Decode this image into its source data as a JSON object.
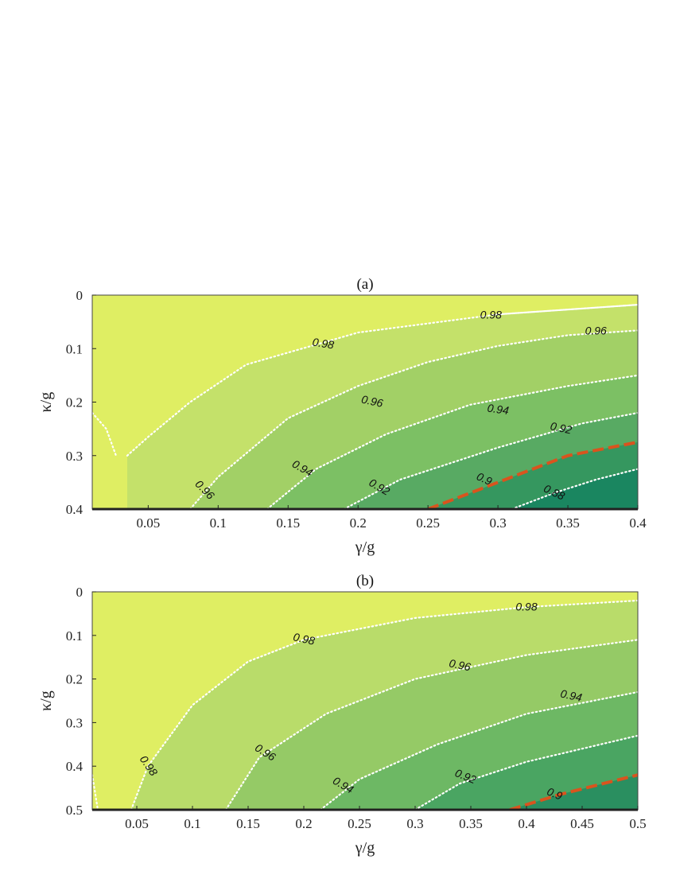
{
  "chart_data": [
    {
      "type": "contour",
      "title": "(a)",
      "xlabel": "γ/g",
      "ylabel": "κ/g",
      "xlim": [
        0.01,
        0.4
      ],
      "ylim": [
        0,
        0.4
      ],
      "y_inverted": true,
      "xticks": [
        0.05,
        0.1,
        0.15,
        0.2,
        0.25,
        0.3,
        0.35,
        0.4
      ],
      "xtick_labels": [
        "0.05",
        "0.1",
        "0.15",
        "0.2",
        "0.25",
        "0.3",
        "0.35",
        "0.4"
      ],
      "yticks": [
        0,
        0.1,
        0.2,
        0.3,
        0.4
      ],
      "ytick_labels": [
        "0",
        "0.1",
        "0.2",
        "0.3",
        "0.4"
      ],
      "fill_colors": [
        "#dfee63",
        "#c4e16a",
        "#a2d066",
        "#7cc064",
        "#58aa63",
        "#35975f",
        "#1a8660",
        "#087a62"
      ],
      "highlight_color": "#d9541e",
      "contours": [
        {
          "level": "0.98",
          "label": "0.98",
          "points": [
            [
              0.01,
              0.22
            ],
            [
              0.02,
              0.25
            ],
            [
              0.027,
              0.3
            ]
          ]
        },
        {
          "level": "0.98",
          "label": "0.98",
          "points": [
            [
              0.035,
              0.3
            ],
            [
              0.05,
              0.265
            ],
            [
              0.08,
              0.2
            ],
            [
              0.12,
              0.13
            ],
            [
              0.2,
              0.07
            ],
            [
              0.3,
              0.036
            ],
            [
              0.4,
              0.018
            ]
          ],
          "label_at": [
            0.175,
            0.092
          ],
          "label_angle": 9
        },
        {
          "level": "0.98",
          "label": "0.98",
          "points": [
            [
              0.3,
              0.036
            ],
            [
              0.4,
              0.018
            ]
          ],
          "label_at": [
            0.295,
            0.038
          ],
          "label_angle": 0,
          "label_only": true
        },
        {
          "level": "0.96",
          "label": "0.96",
          "points": [
            [
              0.08,
              0.4
            ],
            [
              0.1,
              0.34
            ],
            [
              0.15,
              0.23
            ],
            [
              0.2,
              0.17
            ],
            [
              0.25,
              0.125
            ],
            [
              0.3,
              0.095
            ],
            [
              0.35,
              0.075
            ],
            [
              0.4,
              0.066
            ]
          ],
          "label_at": [
            0.09,
            0.365
          ],
          "label_angle": 45
        },
        {
          "level": "0.96",
          "label": "0.96",
          "points": [],
          "label_at": [
            0.21,
            0.2
          ],
          "label_angle": 12,
          "label_only": true
        },
        {
          "level": "0.96",
          "label": "0.96",
          "points": [],
          "label_at": [
            0.37,
            0.068
          ],
          "label_angle": 0,
          "label_only": true
        },
        {
          "level": "0.94",
          "label": "0.94",
          "points": [
            [
              0.135,
              0.4
            ],
            [
              0.17,
              0.325
            ],
            [
              0.22,
              0.26
            ],
            [
              0.28,
              0.205
            ],
            [
              0.35,
              0.17
            ],
            [
              0.4,
              0.15
            ]
          ],
          "label_at": [
            0.16,
            0.325
          ],
          "label_angle": 30
        },
        {
          "level": "0.94",
          "label": "0.94",
          "points": [],
          "label_at": [
            0.3,
            0.215
          ],
          "label_angle": 8,
          "label_only": true
        },
        {
          "level": "0.92",
          "label": "0.92",
          "points": [
            [
              0.19,
              0.4
            ],
            [
              0.23,
              0.345
            ],
            [
              0.3,
              0.285
            ],
            [
              0.36,
              0.24
            ],
            [
              0.4,
              0.22
            ]
          ],
          "label_at": [
            0.215,
            0.36
          ],
          "label_angle": 30
        },
        {
          "level": "0.92",
          "label": "0.92",
          "points": [],
          "label_at": [
            0.345,
            0.25
          ],
          "label_angle": 12,
          "label_only": true
        },
        {
          "level": "0.9",
          "label": "0.9",
          "highlight": true,
          "points": [
            [
              0.25,
              0.4
            ],
            [
              0.3,
              0.35
            ],
            [
              0.35,
              0.3
            ],
            [
              0.4,
              0.275
            ]
          ],
          "label_at": [
            0.29,
            0.345
          ],
          "label_angle": 25
        },
        {
          "level": "0.88",
          "label": "0.88",
          "points": [
            [
              0.31,
              0.4
            ],
            [
              0.34,
              0.37
            ],
            [
              0.37,
              0.345
            ],
            [
              0.4,
              0.325
            ]
          ],
          "label_at": [
            0.34,
            0.37
          ],
          "label_angle": 25
        }
      ]
    },
    {
      "type": "contour",
      "title": "(b)",
      "xlabel": "γ/g",
      "ylabel": "κ/g",
      "xlim": [
        0.01,
        0.5
      ],
      "ylim": [
        0,
        0.5
      ],
      "y_inverted": true,
      "xticks": [
        0.05,
        0.1,
        0.15,
        0.2,
        0.25,
        0.3,
        0.35,
        0.4,
        0.45,
        0.5
      ],
      "xtick_labels": [
        "0.05",
        "0.1",
        "0.15",
        "0.2",
        "0.25",
        "0.3",
        "0.35",
        "0.4",
        "0.45",
        "0.5"
      ],
      "yticks": [
        0,
        0.1,
        0.2,
        0.3,
        0.4,
        0.5
      ],
      "ytick_labels": [
        "0",
        "0.1",
        "0.2",
        "0.3",
        "0.4",
        "0.5"
      ],
      "fill_colors": [
        "#dfee63",
        "#b9dc6a",
        "#95ca66",
        "#6db864",
        "#4aa562",
        "#2a8f60",
        "#0b7a62"
      ],
      "highlight_color": "#d9541e",
      "contours": [
        {
          "level": "0.98",
          "label": "0.98",
          "points": [
            [
              0.01,
              0.42
            ],
            [
              0.015,
              0.5
            ]
          ]
        },
        {
          "level": "0.98",
          "label": "0.98",
          "points": [
            [
              0.045,
              0.5
            ],
            [
              0.06,
              0.4
            ],
            [
              0.1,
              0.26
            ],
            [
              0.15,
              0.16
            ],
            [
              0.2,
              0.11
            ],
            [
              0.3,
              0.06
            ],
            [
              0.4,
              0.035
            ],
            [
              0.5,
              0.02
            ]
          ],
          "label_at": [
            0.06,
            0.4
          ],
          "label_angle": 55
        },
        {
          "level": "0.98",
          "label": "0.98",
          "points": [],
          "label_at": [
            0.2,
            0.11
          ],
          "label_angle": 12,
          "label_only": true
        },
        {
          "level": "0.98",
          "label": "0.98",
          "points": [],
          "label_at": [
            0.4,
            0.036
          ],
          "label_angle": 0,
          "label_only": true
        },
        {
          "level": "0.96",
          "label": "0.96",
          "points": [
            [
              0.13,
              0.5
            ],
            [
              0.16,
              0.38
            ],
            [
              0.22,
              0.28
            ],
            [
              0.3,
              0.2
            ],
            [
              0.4,
              0.145
            ],
            [
              0.5,
              0.11
            ]
          ],
          "label_at": [
            0.165,
            0.37
          ],
          "label_angle": 32
        },
        {
          "level": "0.96",
          "label": "0.96",
          "points": [],
          "label_at": [
            0.34,
            0.17
          ],
          "label_angle": 12,
          "label_only": true
        },
        {
          "level": "0.94",
          "label": "0.94",
          "points": [
            [
              0.215,
              0.5
            ],
            [
              0.25,
              0.43
            ],
            [
              0.32,
              0.35
            ],
            [
              0.4,
              0.28
            ],
            [
              0.5,
              0.23
            ]
          ],
          "label_at": [
            0.235,
            0.445
          ],
          "label_angle": 30
        },
        {
          "level": "0.94",
          "label": "0.94",
          "points": [],
          "label_at": [
            0.44,
            0.24
          ],
          "label_angle": 12,
          "label_only": true
        },
        {
          "level": "0.92",
          "label": "0.92",
          "points": [
            [
              0.3,
              0.5
            ],
            [
              0.34,
              0.44
            ],
            [
              0.4,
              0.39
            ],
            [
              0.5,
              0.33
            ]
          ],
          "label_at": [
            0.345,
            0.425
          ],
          "label_angle": 22
        },
        {
          "level": "0.9",
          "label": "0.9",
          "highlight": true,
          "points": [
            [
              0.385,
              0.5
            ],
            [
              0.43,
              0.465
            ],
            [
              0.5,
              0.42
            ]
          ],
          "label_at": [
            0.425,
            0.465
          ],
          "label_angle": 22
        }
      ]
    }
  ]
}
